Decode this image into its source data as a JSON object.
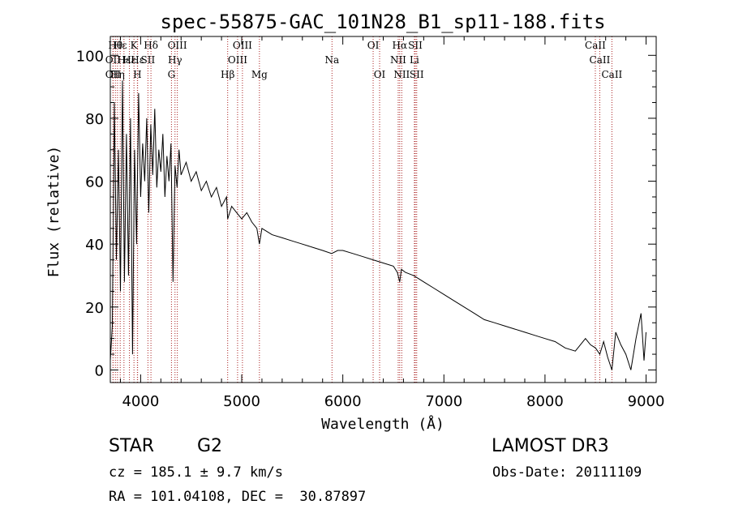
{
  "chart_data": {
    "type": "line",
    "title": "spec-55875-GAC_101N28_B1_sp11-188.fits",
    "xlabel": "Wavelength (Å)",
    "ylabel": "Flux (relative)",
    "xlim": [
      3700,
      9100
    ],
    "ylim": [
      -4,
      106
    ],
    "xticks": [
      "4000",
      "5000",
      "6000",
      "7000",
      "8000",
      "9000"
    ],
    "xtick_values": [
      4000,
      5000,
      6000,
      7000,
      8000,
      9000
    ],
    "yticks": [
      "0",
      "20",
      "40",
      "60",
      "80",
      "100"
    ],
    "ytick_values": [
      0,
      20,
      40,
      60,
      80,
      100
    ],
    "series": [
      {
        "name": "spectrum",
        "color": "#000000",
        "x": [
          3700,
          3720,
          3740,
          3760,
          3780,
          3800,
          3820,
          3840,
          3860,
          3880,
          3900,
          3920,
          3940,
          3960,
          3980,
          4000,
          4020,
          4040,
          4060,
          4080,
          4100,
          4120,
          4140,
          4160,
          4180,
          4200,
          4220,
          4240,
          4260,
          4280,
          4300,
          4320,
          4340,
          4360,
          4380,
          4400,
          4450,
          4500,
          4550,
          4600,
          4650,
          4700,
          4750,
          4800,
          4850,
          4861,
          4900,
          4950,
          5000,
          5050,
          5100,
          5150,
          5175,
          5200,
          5250,
          5300,
          5400,
          5500,
          5600,
          5700,
          5800,
          5890,
          5950,
          6000,
          6100,
          6200,
          6300,
          6400,
          6500,
          6540,
          6563,
          6580,
          6620,
          6700,
          6800,
          6900,
          7000,
          7100,
          7200,
          7300,
          7400,
          7500,
          7600,
          7700,
          7800,
          7900,
          8000,
          8100,
          8200,
          8300,
          8400,
          8450,
          8500,
          8542,
          8580,
          8620,
          8662,
          8700,
          8750,
          8800,
          8850,
          8900,
          8950,
          8980,
          9000
        ],
        "y": [
          3,
          14,
          85,
          35,
          70,
          25,
          92,
          28,
          75,
          30,
          80,
          5,
          70,
          40,
          88,
          55,
          72,
          60,
          80,
          50,
          78,
          62,
          83,
          58,
          70,
          63,
          75,
          55,
          68,
          60,
          72,
          28,
          65,
          58,
          70,
          62,
          66,
          60,
          63,
          57,
          60,
          55,
          58,
          52,
          55,
          48,
          52,
          50,
          48,
          50,
          47,
          45,
          40,
          45,
          44,
          43,
          42,
          41,
          40,
          39,
          38,
          37,
          38,
          38,
          37,
          36,
          35,
          34,
          33,
          31,
          28,
          32,
          31,
          30,
          28,
          26,
          24,
          22,
          20,
          18,
          16,
          15,
          14,
          13,
          12,
          11,
          10,
          9,
          7,
          6,
          10,
          8,
          7,
          5,
          9,
          4,
          0,
          12,
          8,
          5,
          0,
          10,
          18,
          3,
          12
        ]
      }
    ],
    "lines": [
      {
        "wl": 3727,
        "label": "OII",
        "row": 1
      },
      {
        "wl": 3727,
        "label": "OII",
        "row": 2
      },
      {
        "wl": 3750,
        "label": "Hθ",
        "row": 0
      },
      {
        "wl": 3771,
        "label": "Hη",
        "row": 2
      },
      {
        "wl": 3798,
        "label": "Hε",
        "row": 0
      },
      {
        "wl": 3835,
        "label": "Hε",
        "row": 1
      },
      {
        "wl": 3889,
        "label": "Hε",
        "row": 1
      },
      {
        "wl": 3934,
        "label": "K",
        "row": 0
      },
      {
        "wl": 3968,
        "label": "H",
        "row": 2
      },
      {
        "wl": 3970,
        "label": "Hε",
        "row": 1
      },
      {
        "wl": 4072,
        "label": "SII",
        "row": 1
      },
      {
        "wl": 4102,
        "label": "Hδ",
        "row": 0
      },
      {
        "wl": 4305,
        "label": "G",
        "row": 2
      },
      {
        "wl": 4340,
        "label": "Hγ",
        "row": 1
      },
      {
        "wl": 4363,
        "label": "OIII",
        "row": 0
      },
      {
        "wl": 4861,
        "label": "Hβ",
        "row": 2
      },
      {
        "wl": 4959,
        "label": "OIII",
        "row": 1
      },
      {
        "wl": 5007,
        "label": "OIII",
        "row": 0
      },
      {
        "wl": 5175,
        "label": "Mg",
        "row": 2
      },
      {
        "wl": 5893,
        "label": "Na",
        "row": 1
      },
      {
        "wl": 6300,
        "label": "OI",
        "row": 0
      },
      {
        "wl": 6364,
        "label": "OI",
        "row": 2
      },
      {
        "wl": 6548,
        "label": "NII",
        "row": 1
      },
      {
        "wl": 6563,
        "label": "Hα",
        "row": 0
      },
      {
        "wl": 6583,
        "label": "NII",
        "row": 2
      },
      {
        "wl": 6708,
        "label": "Li",
        "row": 1
      },
      {
        "wl": 6717,
        "label": "SII",
        "row": 0
      },
      {
        "wl": 6731,
        "label": "SII",
        "row": 2
      },
      {
        "wl": 8498,
        "label": "CaII",
        "row": 0
      },
      {
        "wl": 8542,
        "label": "CaII",
        "row": 1
      },
      {
        "wl": 8662,
        "label": "CaII",
        "row": 2
      }
    ]
  },
  "info": {
    "object_class": "STAR",
    "subclass": "G2",
    "survey": "LAMOST DR3",
    "redshift": "cz = 185.1 ± 9.7 km/s",
    "obs_date": "Obs-Date: 20111109",
    "coords": "RA = 101.04108, DEC =  30.87897"
  }
}
